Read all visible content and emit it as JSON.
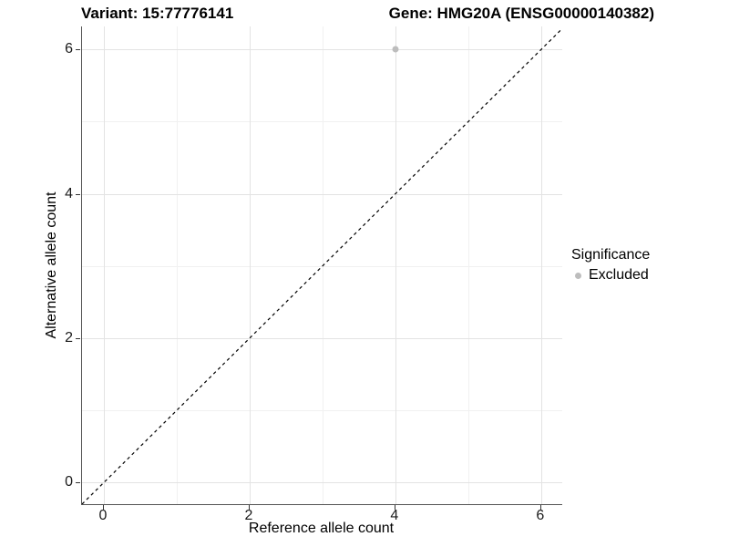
{
  "chart_data": {
    "type": "scatter",
    "title_left": "Variant: 15:77776141",
    "title_right": "Gene: HMG20A (ENSG00000140382)",
    "xlabel": "Reference allele count",
    "ylabel": "Alternative allele count",
    "xlim": [
      -0.3,
      6.29
    ],
    "ylim": [
      -0.3,
      6.32
    ],
    "x_ticks": [
      0,
      2,
      4,
      6
    ],
    "y_ticks": [
      0,
      2,
      4,
      6
    ],
    "x_minor_ticks": [
      1,
      3,
      5
    ],
    "y_minor_ticks": [
      1,
      3,
      5
    ],
    "grid": true,
    "points": [
      {
        "x": 4,
        "y": 6,
        "series": "Excluded"
      }
    ],
    "identity_line": {
      "type": "dashed",
      "slope": 1,
      "intercept": 0,
      "color": "#000000"
    },
    "legend": {
      "title": "Significance",
      "position": "right",
      "items": [
        {
          "label": "Excluded",
          "color": "#bdbdbd"
        }
      ]
    },
    "colors": {
      "background": "#ffffff",
      "axis_line": "#555555",
      "grid_major": "#e3e3e3",
      "grid_minor": "#f1f1f1",
      "point_excluded": "#bdbdbd",
      "text": "#000000"
    }
  }
}
